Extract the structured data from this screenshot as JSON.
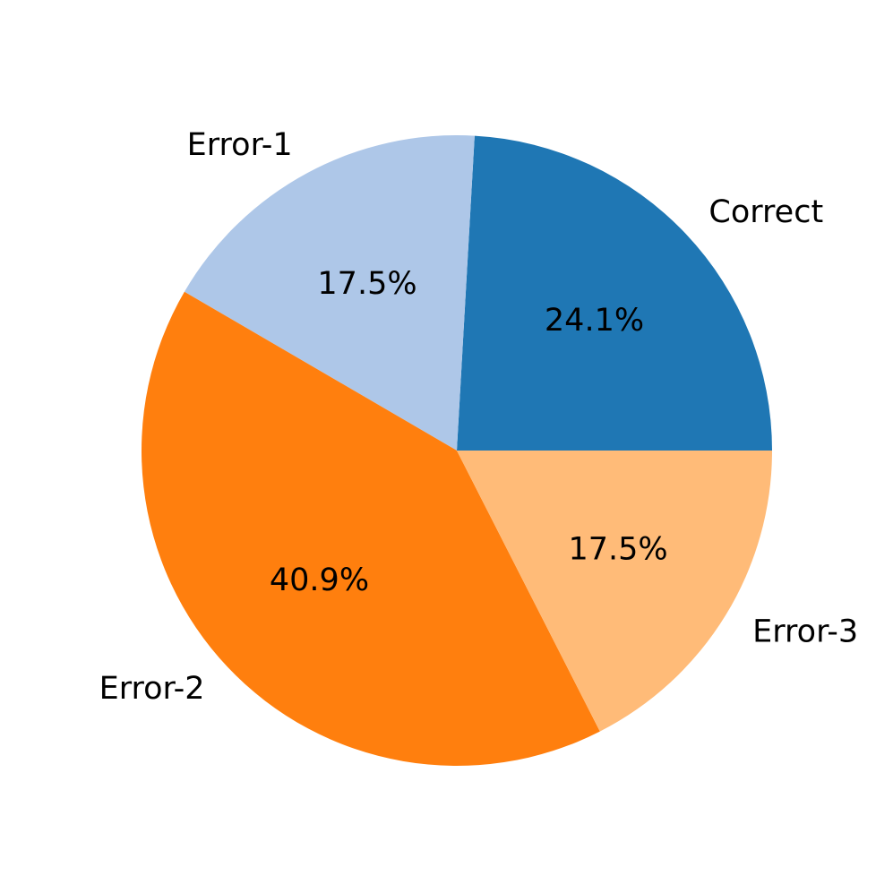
{
  "chart_data": {
    "type": "pie",
    "categories": [
      "Correct",
      "Error-1",
      "Error-2",
      "Error-3"
    ],
    "values": [
      24.1,
      17.5,
      40.9,
      17.5
    ],
    "percent_labels": [
      "24.1%",
      "17.5%",
      "40.9%",
      "17.5%"
    ],
    "colors": [
      "#1f77b4",
      "#aec7e8",
      "#ff7f0e",
      "#ffbb78"
    ],
    "start_angle_deg": 0,
    "direction": "counterclockwise"
  }
}
